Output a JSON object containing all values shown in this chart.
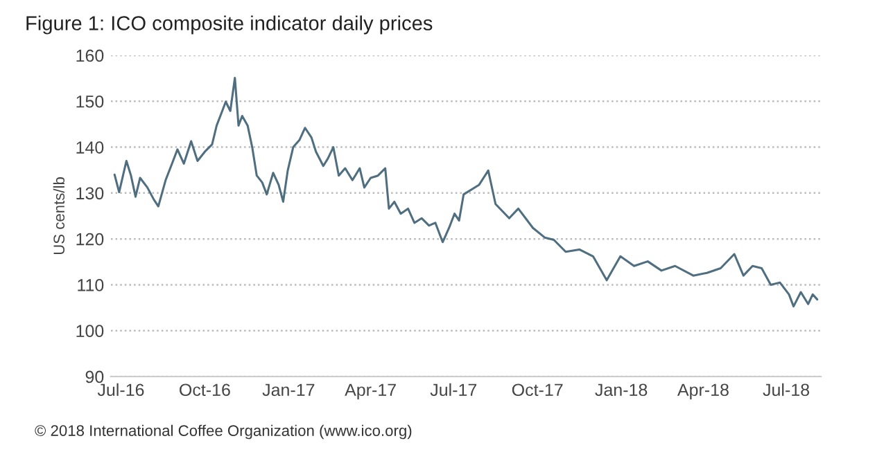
{
  "chart_data": {
    "type": "line",
    "title": "Figure 1: ICO composite indicator daily prices",
    "ylabel": "US cents/lb",
    "x": [
      "2016-06-24",
      "2016-06-29",
      "2016-07-07",
      "2016-07-12",
      "2016-07-17",
      "2016-07-22",
      "2016-07-30",
      "2016-08-06",
      "2016-08-11",
      "2016-08-19",
      "2016-08-26",
      "2016-09-01",
      "2016-09-08",
      "2016-09-16",
      "2016-09-23",
      "2016-10-01",
      "2016-10-09",
      "2016-10-14",
      "2016-10-19",
      "2016-10-24",
      "2016-10-29",
      "2016-11-03",
      "2016-11-07",
      "2016-11-11",
      "2016-11-17",
      "2016-11-22",
      "2016-11-27",
      "2016-12-03",
      "2016-12-08",
      "2016-12-15",
      "2016-12-21",
      "2016-12-26",
      "2016-12-31",
      "2017-01-06",
      "2017-01-13",
      "2017-01-19",
      "2017-01-26",
      "2017-01-31",
      "2017-02-08",
      "2017-02-13",
      "2017-02-19",
      "2017-02-25",
      "2017-03-04",
      "2017-03-12",
      "2017-03-20",
      "2017-03-25",
      "2017-04-01",
      "2017-04-09",
      "2017-04-17",
      "2017-04-21",
      "2017-04-27",
      "2017-05-04",
      "2017-05-12",
      "2017-05-19",
      "2017-05-27",
      "2017-06-04",
      "2017-06-11",
      "2017-06-19",
      "2017-06-26",
      "2017-07-02",
      "2017-07-07",
      "2017-07-12",
      "2017-07-29",
      "2017-08-08",
      "2017-08-16",
      "2017-08-31",
      "2017-09-10",
      "2017-09-26",
      "2017-10-09",
      "2017-10-19",
      "2017-11-01",
      "2017-11-16",
      "2017-12-01",
      "2017-12-16",
      "2017-12-31",
      "2018-01-15",
      "2018-01-30",
      "2018-02-14",
      "2018-03-01",
      "2018-03-21",
      "2018-04-05",
      "2018-04-20",
      "2018-05-05",
      "2018-05-15",
      "2018-05-25",
      "2018-06-04",
      "2018-06-14",
      "2018-06-24",
      "2018-07-04",
      "2018-07-09",
      "2018-07-17",
      "2018-07-25",
      "2018-07-30",
      "2018-08-04"
    ],
    "series": [
      {
        "color": "#4f6e80",
        "values": [
          134,
          130.2,
          137,
          133.8,
          129.2,
          133.3,
          131.2,
          128.6,
          127.1,
          132.8,
          136.4,
          139.5,
          136.4,
          141.3,
          137,
          139,
          140.6,
          144.7,
          147.3,
          149.9,
          147.9,
          155.1,
          144.7,
          146.8,
          144.7,
          140,
          133.8,
          132.3,
          129.7,
          134.4,
          131.8,
          128.1,
          134.9,
          140,
          141.6,
          144.2,
          142.1,
          139,
          135.9,
          137.5,
          140,
          133.8,
          135.4,
          132.8,
          135.4,
          131.2,
          133.3,
          133.8,
          135.4,
          126.6,
          128.1,
          125.5,
          126.6,
          123.5,
          124.5,
          122.9,
          123.5,
          119.3,
          122.4,
          125.5,
          124,
          129.7,
          131.8,
          134.9,
          127.6,
          124.5,
          126.6,
          122.4,
          120.3,
          119.8,
          117.2,
          117.7,
          116.2,
          111,
          116.2,
          114.1,
          115.1,
          113.1,
          114.1,
          112,
          112.6,
          113.6,
          116.7,
          112,
          114.1,
          113.6,
          110,
          110.5,
          107.9,
          105.3,
          108.4,
          105.8,
          107.9,
          106.8
        ]
      }
    ],
    "xlim": [
      "2016-06-20",
      "2018-08-08"
    ],
    "xticks": [
      {
        "value": "2016-07-01",
        "label": "Jul-16"
      },
      {
        "value": "2016-10-01",
        "label": "Oct-16"
      },
      {
        "value": "2017-01-01",
        "label": "Jan-17"
      },
      {
        "value": "2017-04-01",
        "label": "Apr-17"
      },
      {
        "value": "2017-07-01",
        "label": "Jul-17"
      },
      {
        "value": "2017-10-01",
        "label": "Oct-17"
      },
      {
        "value": "2018-01-01",
        "label": "Jan-18"
      },
      {
        "value": "2018-04-01",
        "label": "Apr-18"
      },
      {
        "value": "2018-07-01",
        "label": "Jul-18"
      }
    ],
    "ylim": [
      90,
      160
    ],
    "yticks": [
      90,
      100,
      110,
      120,
      130,
      140,
      150,
      160
    ],
    "grid": "y",
    "line_style": "solid",
    "marker": "none",
    "annotations": [
      "© 2018 International Coffee Organization (www.ico.org)"
    ]
  }
}
